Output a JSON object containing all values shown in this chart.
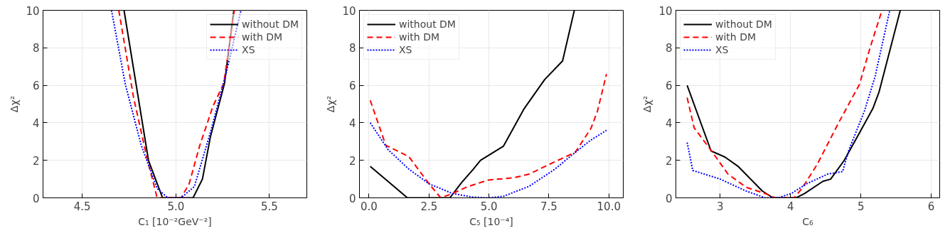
{
  "chart_data": [
    {
      "type": "line",
      "xlabel": "C₁ [10⁻²GeV⁻²]",
      "ylabel": "Δχ²",
      "xlim": [
        4.29,
        5.7
      ],
      "xticks": [
        4.5,
        {
          "value": 5,
          "label": "5.0"
        },
        5.5
      ],
      "ylim": [
        0,
        10
      ],
      "yticks": [
        0,
        2,
        4,
        6,
        8,
        10
      ],
      "grid": true,
      "legend": "top right",
      "series": [
        {
          "name": "without DM",
          "color": "#000000",
          "line_style": "solid",
          "x": [
            4.723,
            4.854,
            4.929,
            5.092,
            5.142,
            5.185,
            5.26,
            5.31
          ],
          "values": [
            10,
            1.98,
            0,
            0,
            1.0,
            3.27,
            6.1,
            10
          ]
        },
        {
          "name": "with DM",
          "color": "#ff0000",
          "line_style": "dashed",
          "x": [
            4.695,
            4.773,
            4.844,
            4.9,
            5.028,
            5.071,
            5.128,
            5.199,
            5.256,
            5.312
          ],
          "values": [
            10,
            5.4,
            2.2,
            0,
            0,
            0.75,
            2.8,
            4.9,
            6.1,
            10
          ]
        },
        {
          "name": "XS",
          "color": "#0000ff",
          "line_style": "dotted",
          "x": [
            4.656,
            4.73,
            4.815,
            4.9,
            4.957,
            5.028,
            5.099,
            5.185,
            5.27,
            5.348
          ],
          "values": [
            10,
            6.05,
            2.8,
            0.5,
            0,
            0,
            0.6,
            3.5,
            6.7,
            10
          ]
        }
      ]
    },
    {
      "type": "line",
      "xlabel": "C₅ [10⁻⁴]",
      "ylabel": "Δχ²",
      "xlim": [
        -0.4,
        10.6
      ],
      "xticks": [
        {
          "value": 0,
          "label": "0.0"
        },
        2.5,
        {
          "value": 5,
          "label": "5.0"
        },
        7.5,
        {
          "value": 10,
          "label": "10.0"
        }
      ],
      "ylim": [
        0,
        10
      ],
      "yticks": [
        0,
        2,
        4,
        6,
        8,
        10
      ],
      "grid": true,
      "legend": "top left",
      "series": [
        {
          "name": "without DM",
          "color": "#000000",
          "line_style": "solid",
          "x": [
            0.05,
            1.6,
            3.37,
            3.85,
            4.33,
            4.65,
            5.6,
            6.47,
            7.32,
            8.07,
            8.56
          ],
          "values": [
            1.68,
            0,
            0,
            0.8,
            1.5,
            2.0,
            2.75,
            4.76,
            6.3,
            7.3,
            10
          ]
        },
        {
          "name": "with DM",
          "color": "#ff0000",
          "line_style": "dashed",
          "x": [
            0.05,
            0.7,
            1.66,
            2.5,
            2.99,
            3.48,
            4.12,
            4.97,
            6.04,
            6.68,
            7.54,
            8.6,
            9.25,
            9.52,
            9.9
          ],
          "values": [
            5.2,
            2.8,
            2.2,
            0.75,
            0,
            0.23,
            0.6,
            0.95,
            1.07,
            1.27,
            1.8,
            2.43,
            3.7,
            4.6,
            6.6
          ]
        },
        {
          "name": "XS",
          "color": "#0000ff",
          "line_style": "dotted",
          "x": [
            0.05,
            0.8,
            1.66,
            2.5,
            3.48,
            4.33,
            4.97,
            5.6,
            6.68,
            7.75,
            8.6,
            9.25,
            9.9
          ],
          "values": [
            4.0,
            2.56,
            1.53,
            0.75,
            0.23,
            0.04,
            0,
            0.08,
            0.62,
            1.53,
            2.43,
            3.08,
            3.6
          ]
        }
      ]
    },
    {
      "type": "line",
      "xlabel": "C₆",
      "ylabel": "Δχ²",
      "xlim": [
        2.37,
        6.12
      ],
      "xticks": [
        3,
        4,
        5,
        6
      ],
      "ylim": [
        0,
        10
      ],
      "yticks": [
        0,
        2,
        4,
        6,
        8,
        10
      ],
      "grid": true,
      "legend": "top left",
      "series": [
        {
          "name": "without DM",
          "color": "#000000",
          "line_style": "solid",
          "x": [
            2.53,
            2.87,
            3.07,
            3.26,
            3.6,
            3.75,
            4.08,
            4.2,
            4.46,
            4.57,
            4.76,
            4.98,
            5.17,
            5.26,
            5.56
          ],
          "values": [
            6.0,
            2.5,
            2.17,
            1.66,
            0.36,
            0,
            0,
            0.23,
            0.88,
            1.0,
            1.98,
            3.47,
            4.76,
            5.67,
            10
          ]
        },
        {
          "name": "with DM",
          "color": "#ff0000",
          "line_style": "dashed",
          "x": [
            2.53,
            2.63,
            2.89,
            3.11,
            3.37,
            3.64,
            3.78,
            4.05,
            4.16,
            4.38,
            4.68,
            4.98,
            5.13,
            5.3
          ],
          "values": [
            5.34,
            3.73,
            2.43,
            1.27,
            0.56,
            0.23,
            0,
            0,
            0.49,
            1.79,
            3.98,
            6.05,
            8.0,
            10
          ]
        },
        {
          "name": "XS",
          "color": "#0000ff",
          "line_style": "dotted",
          "x": [
            2.53,
            2.61,
            3.0,
            3.37,
            3.64,
            3.82,
            4.01,
            4.23,
            4.53,
            4.74,
            4.83,
            5.05,
            5.2,
            5.41
          ],
          "values": [
            2.95,
            1.46,
            1.0,
            0.36,
            0,
            0,
            0.23,
            0.75,
            1.27,
            1.4,
            2.56,
            4.63,
            6.44,
            10
          ]
        }
      ]
    }
  ]
}
